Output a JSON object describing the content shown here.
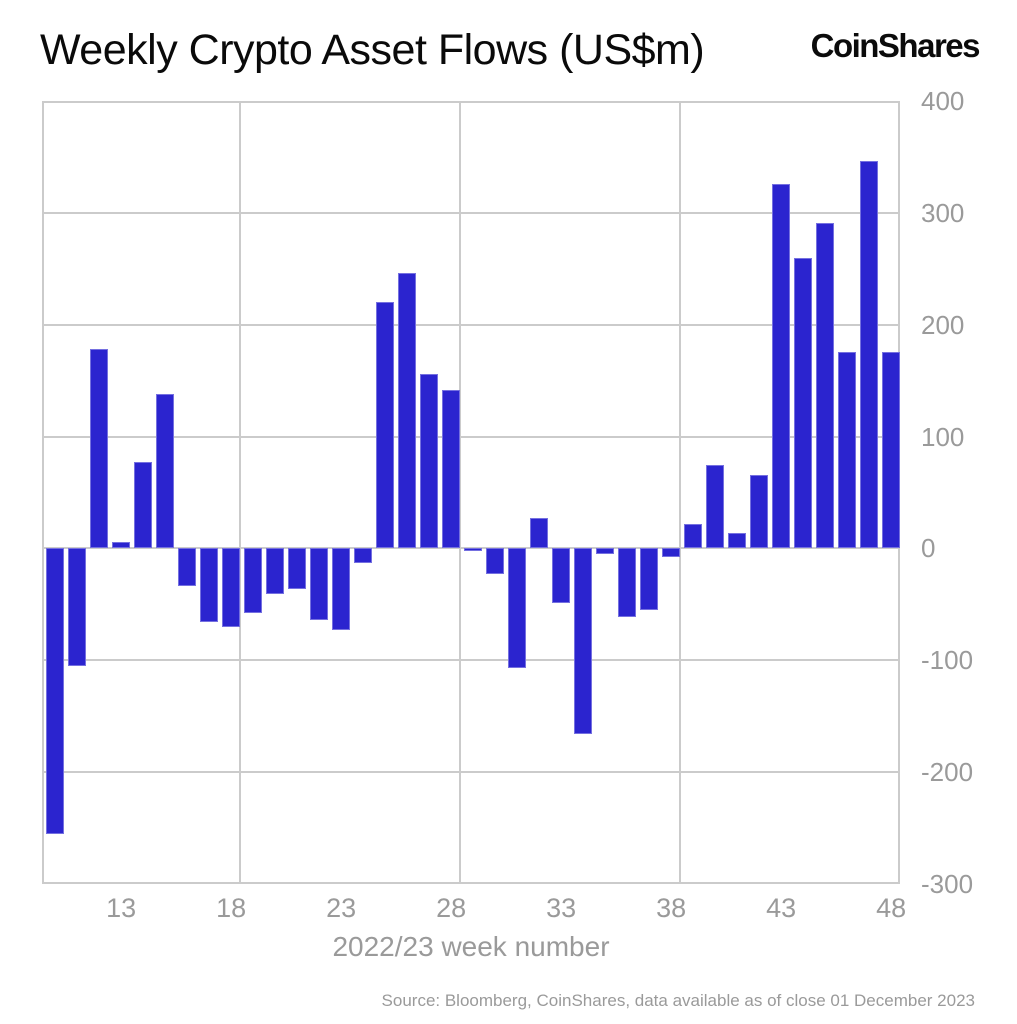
{
  "header": {
    "title": "Weekly Crypto Asset Flows (US$m)",
    "logo": "CoinShares"
  },
  "footer": {
    "source": "Source: Bloomberg, CoinShares, data available as of close 01 December 2023"
  },
  "chart_data": {
    "type": "bar",
    "title": "Weekly Crypto Asset Flows (US$m)",
    "xlabel": "2022/23 week number",
    "ylabel": "",
    "x": [
      10,
      11,
      12,
      13,
      14,
      15,
      16,
      17,
      18,
      19,
      20,
      21,
      22,
      23,
      24,
      25,
      26,
      27,
      28,
      29,
      30,
      31,
      32,
      33,
      34,
      35,
      36,
      37,
      38,
      39,
      40,
      41,
      42,
      43,
      44,
      45,
      46,
      47,
      48
    ],
    "values": [
      -255,
      -105,
      178,
      6,
      77,
      138,
      -34,
      -66,
      -70,
      -58,
      -41,
      -36,
      -64,
      -73,
      -13,
      220,
      246,
      156,
      142,
      -2,
      -23,
      -107,
      27,
      -49,
      -166,
      -5,
      -61,
      -55,
      -8,
      22,
      75,
      14,
      66,
      326,
      260,
      291,
      176,
      346,
      176
    ],
    "x_ticks": [
      13,
      18,
      23,
      28,
      33,
      38,
      43,
      48
    ],
    "y_ticks": [
      400,
      300,
      200,
      100,
      0,
      -100,
      -200,
      -300
    ],
    "ylim": [
      -300,
      400
    ],
    "xlim": [
      9.4,
      48.4
    ],
    "grid": "on",
    "legend": "none",
    "bar_color": "#2b24cf",
    "grid_color": "#cbcbcb",
    "tick_label_color": "#9a9a9a",
    "title_color": "#0a0a0a"
  }
}
